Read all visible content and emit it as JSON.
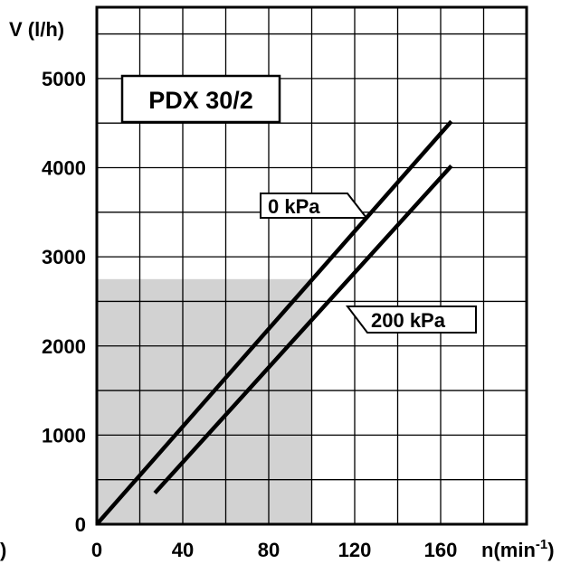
{
  "chart_data": {
    "type": "line",
    "title": "PDX 30/2",
    "xlabel": "n(min",
    "xlabel_sup": "-1",
    "xlabel_close": ")",
    "ylabel": "V (l/h)",
    "left_edge_fragment": ")",
    "xlim": [
      0,
      200
    ],
    "ylim": [
      0,
      5800
    ],
    "x_ticks": [
      0,
      40,
      80,
      120,
      160
    ],
    "y_ticks": [
      0,
      1000,
      2000,
      3000,
      4000,
      5000
    ],
    "grid": true,
    "grid_x_step": 20,
    "grid_y_step": 500,
    "shaded_region": {
      "x": [
        0,
        100
      ],
      "y": [
        0,
        2750
      ],
      "color": "#d2d2d2"
    },
    "series": [
      {
        "name": "0 kPa",
        "x": [
          0,
          165
        ],
        "y": [
          0,
          4520
        ]
      },
      {
        "name": "200 kPa",
        "x": [
          27,
          165
        ],
        "y": [
          350,
          4020
        ]
      }
    ],
    "line_color": "#000000"
  }
}
